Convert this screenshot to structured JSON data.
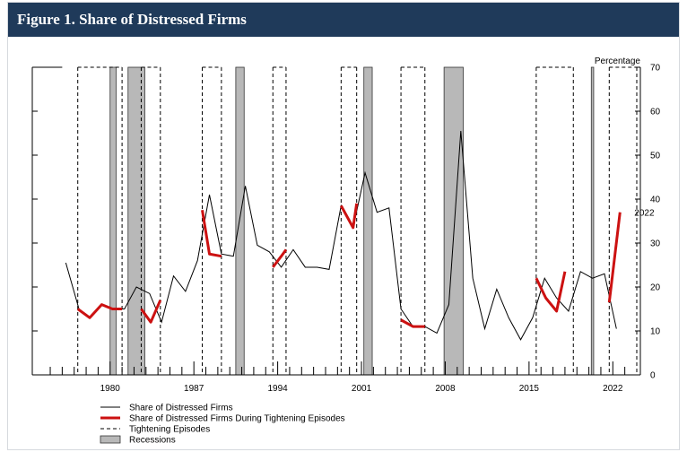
{
  "figure": {
    "title": "Figure 1. Share of Distressed Firms"
  },
  "chart_data": {
    "type": "line",
    "y_axis_label": "Percentage",
    "ylim": [
      0,
      70
    ],
    "y_ticks": [
      0,
      10,
      20,
      30,
      40,
      50,
      60,
      70
    ],
    "xlim": [
      1973.5,
      2024.3
    ],
    "x_ticks": [
      1980,
      1987,
      1994,
      2001,
      2008,
      2015,
      2022
    ],
    "x_tick_labels": [
      "1980",
      "1987",
      "1994",
      "2001",
      "2008",
      "2015",
      "2022"
    ],
    "annotation": {
      "text": "2022",
      "x": 2022.6,
      "y": 37
    },
    "series": [
      {
        "name": "Share of Distressed Firms",
        "color": "#000000",
        "x": [
          1976.3,
          1977.4,
          1978.3,
          1979.3,
          1980.2,
          1981.2,
          1982.2,
          1983.3,
          1984.3,
          1985.3,
          1986.3,
          1987.3,
          1988.3,
          1989.3,
          1990.3,
          1991.3,
          1992.3,
          1993.3,
          1994.3,
          1995.3,
          1996.3,
          1997.3,
          1998.3,
          1999.3,
          2000.3,
          2001.3,
          2002.3,
          2003.3,
          2004.3,
          2005.3,
          2006.3,
          2007.3,
          2008.3,
          2009.3,
          2010.3,
          2011.3,
          2012.3,
          2013.3,
          2014.3,
          2015.3,
          2016.3,
          2017.3,
          2018.3,
          2019.3,
          2020.3,
          2021.3,
          2022.3
        ],
        "y": [
          25.5,
          15,
          13,
          16,
          15,
          15,
          20,
          18.5,
          12,
          22.5,
          19,
          26,
          41,
          27.5,
          27,
          43,
          29.5,
          28,
          24.5,
          28.5,
          24.5,
          24.5,
          24,
          38.5,
          33.5,
          46,
          37,
          38,
          15,
          11,
          11,
          9.5,
          16,
          55.5,
          22,
          10.5,
          19.5,
          13,
          8,
          13,
          22,
          17.5,
          14.5,
          23.5,
          22,
          23,
          10.5
        ]
      },
      {
        "name": "Share of Distressed Firms During Tightening Episodes",
        "color": "#cc1111",
        "segments": [
          {
            "x": [
              1977.3,
              1978.3,
              1979.3,
              1980.2,
              1981.0
            ],
            "y": [
              15,
              13,
              16,
              15,
              15
            ]
          },
          {
            "x": [
              1982.6,
              1983.4,
              1984.2
            ],
            "y": [
              15,
              12,
              17
            ]
          },
          {
            "x": [
              1987.7,
              1988.3,
              1989.3
            ],
            "y": [
              37.5,
              27.5,
              27
            ]
          },
          {
            "x": [
              1993.6,
              1994.3,
              1994.7
            ],
            "y": [
              24.5,
              27,
              28.5
            ]
          },
          {
            "x": [
              1999.3,
              2000.3,
              2000.6
            ],
            "y": [
              38.5,
              33.5,
              39
            ]
          },
          {
            "x": [
              2004.3,
              2005.3,
              2006.3
            ],
            "y": [
              12.5,
              11,
              11
            ]
          },
          {
            "x": [
              2015.6,
              2016.4,
              2017.3,
              2018.0
            ],
            "y": [
              22,
              17.5,
              14.5,
              23.5
            ]
          },
          {
            "x": [
              2021.7,
              2022.6
            ],
            "y": [
              16.5,
              37
            ]
          }
        ]
      }
    ],
    "tightening_episodes": [
      [
        1977.3,
        1981.0
      ],
      [
        1982.6,
        1984.2
      ],
      [
        1987.7,
        1989.3
      ],
      [
        1993.6,
        1994.7
      ],
      [
        1999.3,
        2000.6
      ],
      [
        2004.3,
        2006.3
      ],
      [
        2015.6,
        2018.7
      ],
      [
        2021.7,
        2024.0
      ]
    ],
    "recessions": [
      [
        1980.0,
        1980.5
      ],
      [
        1981.5,
        1982.9
      ],
      [
        1990.5,
        1991.2
      ],
      [
        2001.2,
        2001.9
      ],
      [
        2007.9,
        2009.5
      ],
      [
        2020.2,
        2020.4
      ]
    ],
    "legend": [
      {
        "label": "Share of Distressed Firms",
        "style": "thin-solid"
      },
      {
        "label": "Share of Distressed Firms During Tightening Episodes",
        "style": "thick-red"
      },
      {
        "label": "Tightening Episodes",
        "style": "dashed"
      },
      {
        "label": "Recessions",
        "style": "gray-box"
      }
    ],
    "legend_placement": "bottom-left",
    "grid": false
  }
}
